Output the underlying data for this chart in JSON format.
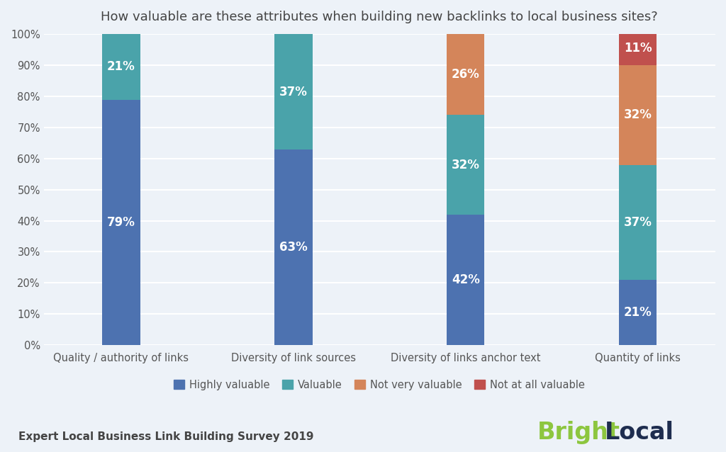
{
  "title": "How valuable are these attributes when building new backlinks to local business sites?",
  "categories": [
    "Quality / authority of links",
    "Diversity of link sources",
    "Diversity of links anchor text",
    "Quantity of links"
  ],
  "series": {
    "Highly valuable": [
      79,
      63,
      42,
      21
    ],
    "Valuable": [
      21,
      37,
      32,
      37
    ],
    "Not very valuable": [
      0,
      0,
      26,
      32
    ],
    "Not at all valuable": [
      0,
      0,
      0,
      11
    ]
  },
  "colors": {
    "Highly valuable": "#4d72b0",
    "Valuable": "#4aa3aa",
    "Not very valuable": "#d4855a",
    "Not at all valuable": "#c0504d"
  },
  "background_color": "#edf2f8",
  "bar_width": 0.22,
  "ylim": [
    0,
    100
  ],
  "footer_left": "Expert Local Business Link Building Survey 2019",
  "bright_color": "#8dc63f",
  "local_color": "#1e2d4f",
  "title_fontsize": 13,
  "tick_fontsize": 10.5,
  "legend_fontsize": 10.5,
  "label_fontsize": 12
}
